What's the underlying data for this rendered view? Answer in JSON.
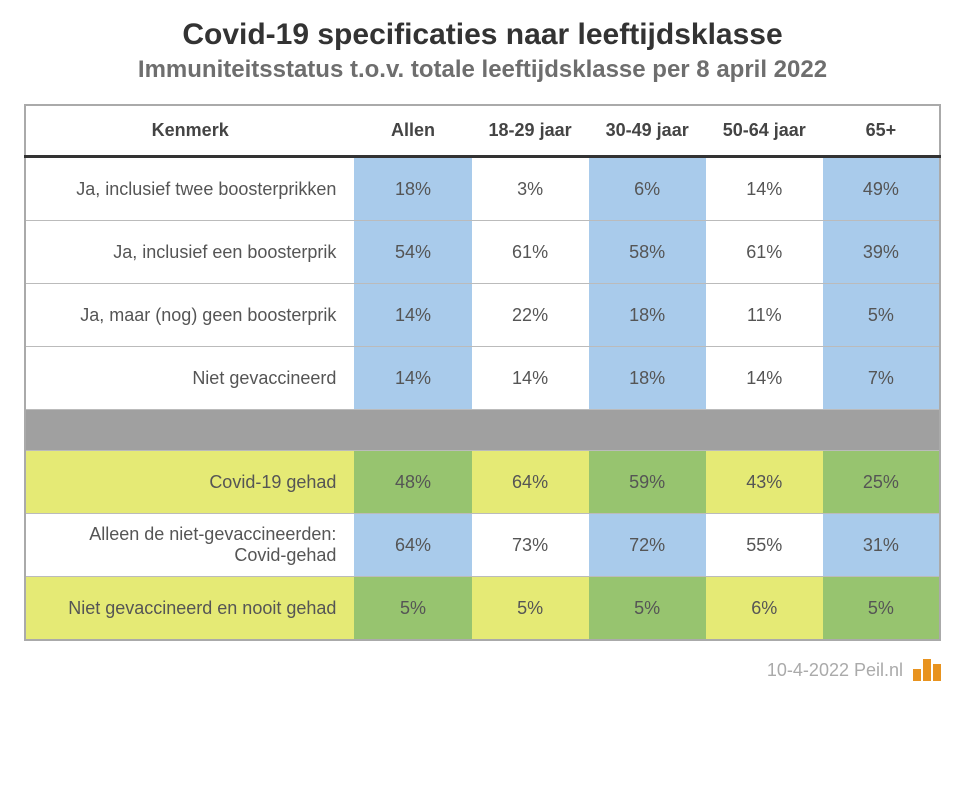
{
  "title": "Covid-19 specificaties naar leeftijdsklasse",
  "subtitle": "Immuniteitsstatus t.o.v. totale leeftijdsklasse per 8 april 2022",
  "subtitle_color": "#6e6e6e",
  "footer_text": "10-4-2022 Peil.nl",
  "colors": {
    "blue": "#a9cbeb",
    "yellow": "#e5ea75",
    "green": "#97c46f",
    "grey": "#a0a0a0",
    "white": "#ffffff"
  },
  "columns": [
    "Kenmerk",
    "Allen",
    "18-29 jaar",
    "30-49 jaar",
    "50-64 jaar",
    "65+"
  ],
  "rows": [
    {
      "label": "Ja, inclusief twee boosterprikken",
      "values": [
        "18%",
        "3%",
        "6%",
        "14%",
        "49%"
      ],
      "label_bg": "white",
      "cell_colors": [
        "blue",
        "white",
        "blue",
        "white",
        "blue"
      ]
    },
    {
      "label": "Ja, inclusief een boosterprik",
      "values": [
        "54%",
        "61%",
        "58%",
        "61%",
        "39%"
      ],
      "label_bg": "white",
      "cell_colors": [
        "blue",
        "white",
        "blue",
        "white",
        "blue"
      ]
    },
    {
      "label": "Ja, maar (nog) geen boosterprik",
      "values": [
        "14%",
        "22%",
        "18%",
        "11%",
        "5%"
      ],
      "label_bg": "white",
      "cell_colors": [
        "blue",
        "white",
        "blue",
        "white",
        "blue"
      ]
    },
    {
      "label": "Niet gevaccineerd",
      "values": [
        "14%",
        "14%",
        "18%",
        "14%",
        "7%"
      ],
      "label_bg": "white",
      "cell_colors": [
        "blue",
        "white",
        "blue",
        "white",
        "blue"
      ]
    },
    {
      "spacer": true
    },
    {
      "label": "Covid-19 gehad",
      "values": [
        "48%",
        "64%",
        "59%",
        "43%",
        "25%"
      ],
      "label_bg": "yellow",
      "cell_colors": [
        "green",
        "yellow",
        "green",
        "yellow",
        "green"
      ]
    },
    {
      "label": "Alleen de niet-gevaccineerden: Covid-gehad",
      "values": [
        "64%",
        "73%",
        "72%",
        "55%",
        "31%"
      ],
      "label_bg": "white",
      "cell_colors": [
        "blue",
        "white",
        "blue",
        "white",
        "blue"
      ]
    },
    {
      "label": "Niet gevaccineerd en nooit gehad",
      "values": [
        "5%",
        "5%",
        "5%",
        "6%",
        "5%"
      ],
      "label_bg": "yellow",
      "cell_colors": [
        "green",
        "yellow",
        "green",
        "yellow",
        "green"
      ]
    }
  ]
}
